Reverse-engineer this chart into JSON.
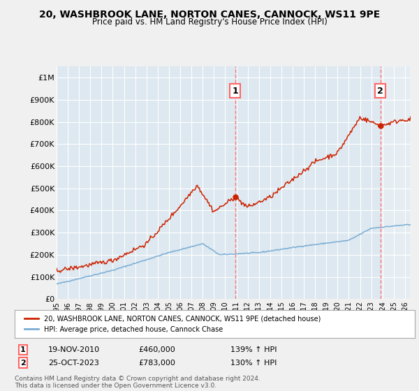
{
  "title": "20, WASHBROOK LANE, NORTON CANES, CANNOCK, WS11 9PE",
  "subtitle": "Price paid vs. HM Land Registry's House Price Index (HPI)",
  "ylabel_ticks": [
    "£0",
    "£100K",
    "£200K",
    "£300K",
    "£400K",
    "£500K",
    "£600K",
    "£700K",
    "£800K",
    "£900K",
    "£1M"
  ],
  "ytick_values": [
    0,
    100000,
    200000,
    300000,
    400000,
    500000,
    600000,
    700000,
    800000,
    900000,
    1000000
  ],
  "ylim": [
    0,
    1050000
  ],
  "xlim_start": 1995.0,
  "xlim_end": 2026.5,
  "fig_bg": "#f0f0f0",
  "plot_bg": "#dde8f0",
  "grid_color": "#ffffff",
  "sale1_x": 2010.89,
  "sale1_y": 460000,
  "sale1_date": "19-NOV-2010",
  "sale1_price": "£460,000",
  "sale1_pct": "139% ↑ HPI",
  "sale2_x": 2023.81,
  "sale2_y": 783000,
  "sale2_date": "25-OCT-2023",
  "sale2_price": "£783,000",
  "sale2_pct": "130% ↑ HPI",
  "hpi_color": "#7aadd4",
  "price_color": "#cc2200",
  "dashed_color": "#ff6666",
  "legend_label_price": "20, WASHBROOK LANE, NORTON CANES, CANNOCK, WS11 9PE (detached house)",
  "legend_label_hpi": "HPI: Average price, detached house, Cannock Chase",
  "footnote": "Contains HM Land Registry data © Crown copyright and database right 2024.\nThis data is licensed under the Open Government Licence v3.0.",
  "xticks": [
    1995,
    1996,
    1997,
    1998,
    1999,
    2000,
    2001,
    2002,
    2003,
    2004,
    2005,
    2006,
    2007,
    2008,
    2009,
    2010,
    2011,
    2012,
    2013,
    2014,
    2015,
    2016,
    2017,
    2018,
    2019,
    2020,
    2021,
    2022,
    2023,
    2024,
    2025,
    2026
  ]
}
